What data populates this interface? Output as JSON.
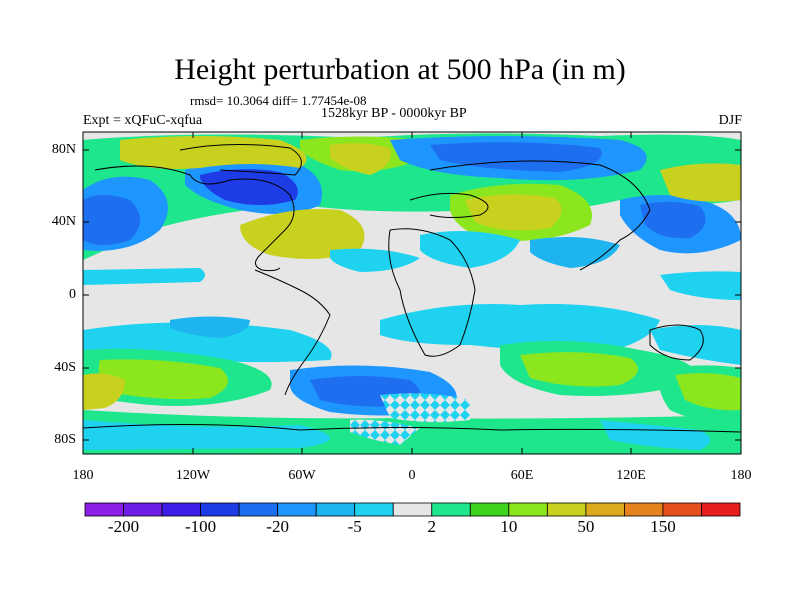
{
  "title": "Height perturbation at 500 hPa (in m)",
  "stats": "rmsd= 10.3064 diff= 1.77454e-08",
  "period": "1528kyr BP - 0000kyr BP",
  "experiment": "Expt = xQFuC-xqfua",
  "season": "DJF",
  "map": {
    "lat_labels": [
      "80N",
      "40N",
      "0",
      "40S",
      "80S"
    ],
    "lon_labels": [
      "180",
      "120W",
      "60W",
      "0",
      "60E",
      "120E",
      "180"
    ]
  },
  "colorbar": {
    "colors": [
      "#8c1ee6",
      "#6e1ee6",
      "#3c1ee6",
      "#1e3ce6",
      "#1e6ef0",
      "#1e96ff",
      "#1eb4f0",
      "#1ed2f0",
      "#e6e6e6",
      "#1ee68c",
      "#3cd21e",
      "#8ce61e",
      "#c8d21e",
      "#dcaa1e",
      "#e6821e",
      "#e6501e",
      "#e61e1e"
    ],
    "labels": [
      "-200",
      "-100",
      "-20",
      "-5",
      "2",
      "10",
      "50",
      "150"
    ]
  }
}
